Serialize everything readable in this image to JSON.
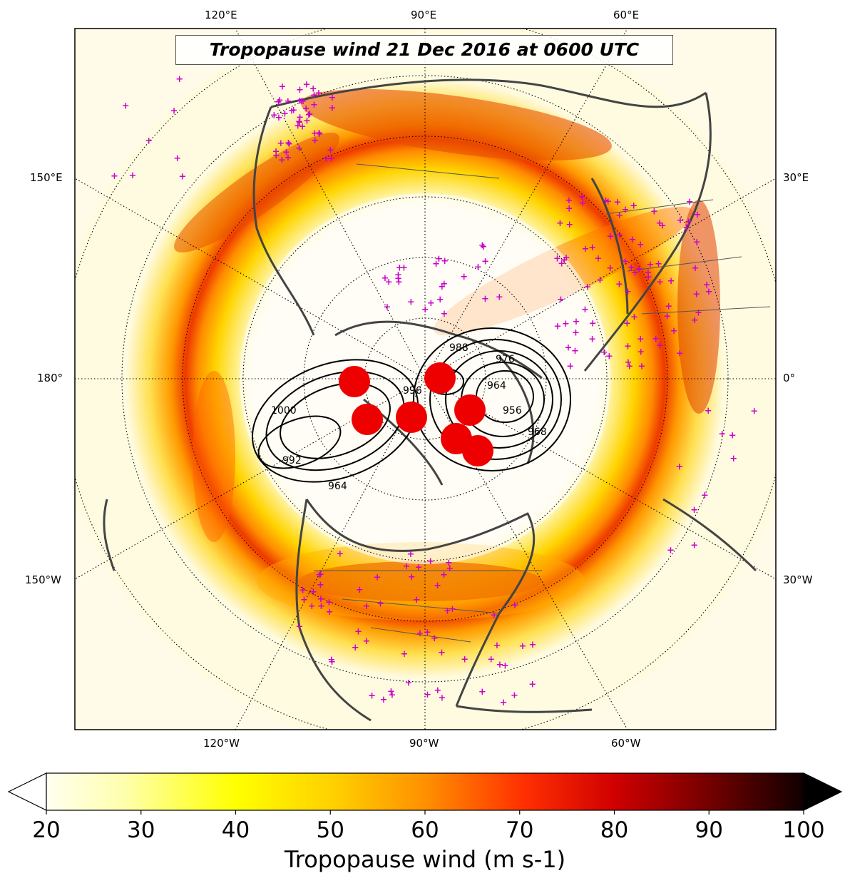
{
  "map": {
    "title": "Tropopause wind 21 Dec 2016 at 0600 UTC",
    "projection": "north-polar-stereographic",
    "longitude_labels_top": [
      "120°E",
      "90°E",
      "60°E"
    ],
    "longitude_labels_bottom": [
      "120°W",
      "90°W",
      "60°W"
    ],
    "longitude_labels_left": [
      "150°E",
      "180°",
      "150°W"
    ],
    "longitude_labels_right": [
      "30°E",
      "0°",
      "30°W"
    ],
    "pressure_contour_labels": [
      "988",
      "976",
      "964",
      "968",
      "956",
      "1000",
      "992",
      "996",
      "964"
    ],
    "station_marker_color": "#cc00cc",
    "low_center_marker_color": "#ee0000",
    "coastline_color": "#444444"
  },
  "colorbar": {
    "label": "Tropopause wind (m s-1)",
    "ticks": [
      "20",
      "30",
      "40",
      "50",
      "60",
      "70",
      "80",
      "90",
      "100"
    ],
    "min": 20,
    "max": 100,
    "extend": "both",
    "colormap": "hot_r"
  }
}
